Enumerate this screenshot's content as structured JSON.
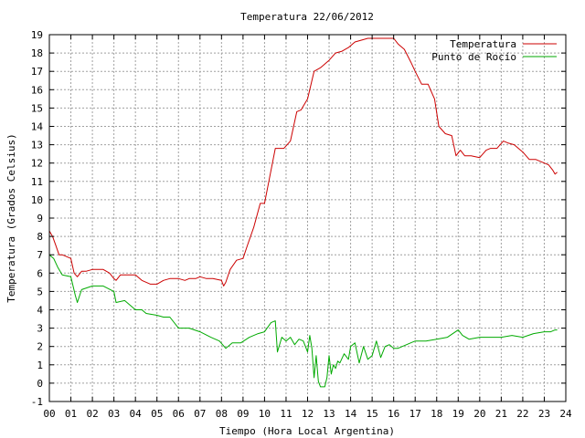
{
  "chart_data": {
    "type": "line",
    "title": "Temperatura 22/06/2012",
    "xlabel": "Tiempo (Hora Local Argentina)",
    "ylabel": "Temperatura (Grados Celsius)",
    "xlim": [
      0,
      24
    ],
    "ylim": [
      -1,
      19
    ],
    "xticks": [
      "00",
      "01",
      "02",
      "03",
      "04",
      "05",
      "06",
      "07",
      "08",
      "09",
      "10",
      "11",
      "12",
      "13",
      "14",
      "15",
      "16",
      "17",
      "18",
      "19",
      "20",
      "21",
      "22",
      "23",
      "24"
    ],
    "yticks": [
      "-1",
      "0",
      "1",
      "2",
      "3",
      "4",
      "5",
      "6",
      "7",
      "8",
      "9",
      "10",
      "11",
      "12",
      "13",
      "14",
      "15",
      "16",
      "17",
      "18",
      "19"
    ],
    "grid": true,
    "legend_position": "top-right",
    "series": [
      {
        "name": "Temperatura",
        "color": "#cc0000",
        "x": [
          0.0,
          0.15,
          0.3,
          0.45,
          0.6,
          1.0,
          1.15,
          1.3,
          1.5,
          1.7,
          2.0,
          2.2,
          2.5,
          2.8,
          3.0,
          3.1,
          3.3,
          3.6,
          4.0,
          4.3,
          4.7,
          5.0,
          5.3,
          5.6,
          6.0,
          6.3,
          6.5,
          6.8,
          7.0,
          7.3,
          7.6,
          8.0,
          8.1,
          8.2,
          8.4,
          8.7,
          9.0,
          9.2,
          9.5,
          9.8,
          10.0,
          10.2,
          10.5,
          10.9,
          11.2,
          11.5,
          11.7,
          12.0,
          12.3,
          12.6,
          13.0,
          13.3,
          13.6,
          13.9,
          14.2,
          14.5,
          14.8,
          15.2,
          15.6,
          16.0,
          16.2,
          16.5,
          16.8,
          17.0,
          17.3,
          17.6,
          17.9,
          18.1,
          18.4,
          18.7,
          18.9,
          19.1,
          19.3,
          19.6,
          20.0,
          20.3,
          20.5,
          20.8,
          21.1,
          21.3,
          21.6,
          22.0,
          22.3,
          22.6,
          23.0,
          23.2,
          23.4,
          23.5,
          23.6
        ],
        "y": [
          8.3,
          8.0,
          7.5,
          7.0,
          7.0,
          6.8,
          6.0,
          5.8,
          6.1,
          6.1,
          6.2,
          6.2,
          6.2,
          6.0,
          5.7,
          5.6,
          5.9,
          5.9,
          5.9,
          5.6,
          5.4,
          5.4,
          5.6,
          5.7,
          5.7,
          5.6,
          5.7,
          5.7,
          5.8,
          5.7,
          5.7,
          5.6,
          5.3,
          5.5,
          6.2,
          6.7,
          6.8,
          7.5,
          8.5,
          9.8,
          9.8,
          11.0,
          12.8,
          12.8,
          13.2,
          14.8,
          14.9,
          15.5,
          17.0,
          17.2,
          17.6,
          18.0,
          18.1,
          18.3,
          18.6,
          18.7,
          18.8,
          18.8,
          18.8,
          18.8,
          18.5,
          18.2,
          17.5,
          17.0,
          16.3,
          16.3,
          15.5,
          14.0,
          13.6,
          13.5,
          12.4,
          12.7,
          12.4,
          12.4,
          12.3,
          12.7,
          12.8,
          12.8,
          13.2,
          13.1,
          13.0,
          12.6,
          12.2,
          12.2,
          12.0,
          11.9,
          11.6,
          11.4,
          11.5
        ]
      },
      {
        "name": "Punto de Rocío",
        "color": "#00aa00",
        "x": [
          0.0,
          0.2,
          0.4,
          0.6,
          1.0,
          1.2,
          1.3,
          1.5,
          2.0,
          2.5,
          3.0,
          3.1,
          3.5,
          4.0,
          4.3,
          4.5,
          5.0,
          5.3,
          5.6,
          6.0,
          6.5,
          7.0,
          7.5,
          7.9,
          8.2,
          8.5,
          8.9,
          9.3,
          9.7,
          10.0,
          10.3,
          10.5,
          10.6,
          10.8,
          11.0,
          11.2,
          11.4,
          11.6,
          11.8,
          12.0,
          12.1,
          12.2,
          12.3,
          12.4,
          12.5,
          12.6,
          12.7,
          12.8,
          12.9,
          13.0,
          13.1,
          13.2,
          13.3,
          13.4,
          13.5,
          13.7,
          13.9,
          14.0,
          14.2,
          14.4,
          14.6,
          14.8,
          15.0,
          15.2,
          15.4,
          15.6,
          15.8,
          16.0,
          16.2,
          16.4,
          16.6,
          16.8,
          17.0,
          17.5,
          18.0,
          18.5,
          19.0,
          19.2,
          19.5,
          20.0,
          20.5,
          21.0,
          21.5,
          22.0,
          22.5,
          23.0,
          23.3,
          23.5,
          23.6
        ],
        "y": [
          7.0,
          6.8,
          6.3,
          5.9,
          5.8,
          4.8,
          4.4,
          5.1,
          5.3,
          5.3,
          5.0,
          4.4,
          4.5,
          4.0,
          4.0,
          3.8,
          3.7,
          3.6,
          3.6,
          3.0,
          3.0,
          2.8,
          2.5,
          2.3,
          1.9,
          2.2,
          2.2,
          2.5,
          2.7,
          2.8,
          3.3,
          3.4,
          1.7,
          2.5,
          2.3,
          2.5,
          2.1,
          2.4,
          2.3,
          1.7,
          2.6,
          1.9,
          0.3,
          1.5,
          0.1,
          -0.2,
          -0.2,
          -0.2,
          0.3,
          1.5,
          0.5,
          1.0,
          0.8,
          1.2,
          1.1,
          1.6,
          1.3,
          2.0,
          2.2,
          1.1,
          2.0,
          1.3,
          1.5,
          2.3,
          1.4,
          2.0,
          2.1,
          1.9,
          1.9,
          2.0,
          2.1,
          2.2,
          2.3,
          2.3,
          2.4,
          2.5,
          2.9,
          2.6,
          2.4,
          2.5,
          2.5,
          2.5,
          2.6,
          2.5,
          2.7,
          2.8,
          2.8,
          2.9,
          2.9
        ]
      }
    ]
  }
}
